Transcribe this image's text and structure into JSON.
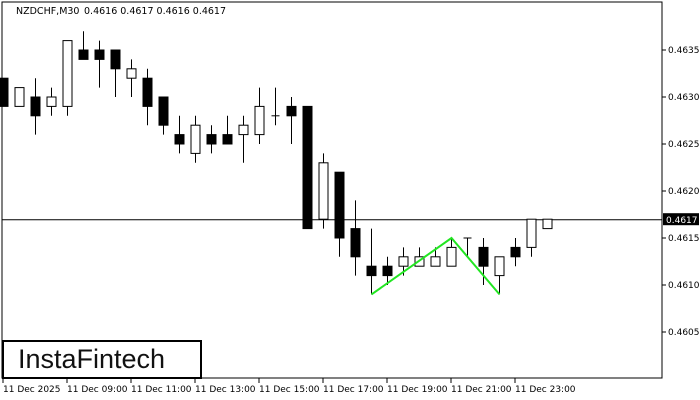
{
  "header": {
    "symbol": "NZDCHF,M30",
    "ohlc": "0.4616 0.4617 0.4616 0.4617"
  },
  "logo": {
    "text": "InstaFintech"
  },
  "colors": {
    "bull_body": "#ffffff",
    "bear_body": "#000000",
    "pattern_line": "#22e622",
    "current_price_bg": "#000000"
  },
  "chart_data": {
    "type": "candlestick",
    "timeframe": "M30",
    "ylim": [
      0.46,
      0.464
    ],
    "yticks": [
      "0.4635",
      "0.4630",
      "0.4625",
      "0.4620",
      "0.4615",
      "0.4610",
      "0.4605"
    ],
    "xticks": [
      "11 Dec 2025",
      "11 Dec 09:00",
      "11 Dec 11:00",
      "11 Dec 13:00",
      "11 Dec 15:00",
      "11 Dec 17:00",
      "11 Dec 19:00",
      "11 Dec 21:00",
      "11 Dec 23:00"
    ],
    "current_price": "0.4617",
    "candles": [
      {
        "o": 0.4632,
        "h": 0.4632,
        "l": 0.4629,
        "c": 0.4629
      },
      {
        "o": 0.4629,
        "h": 0.4631,
        "l": 0.4629,
        "c": 0.4631
      },
      {
        "o": 0.463,
        "h": 0.4632,
        "l": 0.4626,
        "c": 0.4628
      },
      {
        "o": 0.4629,
        "h": 0.4631,
        "l": 0.4628,
        "c": 0.463
      },
      {
        "o": 0.4629,
        "h": 0.4636,
        "l": 0.4628,
        "c": 0.4636
      },
      {
        "o": 0.4635,
        "h": 0.4637,
        "l": 0.4634,
        "c": 0.4634
      },
      {
        "o": 0.4635,
        "h": 0.4636,
        "l": 0.4631,
        "c": 0.4634
      },
      {
        "o": 0.4635,
        "h": 0.4635,
        "l": 0.463,
        "c": 0.4633
      },
      {
        "o": 0.4632,
        "h": 0.4634,
        "l": 0.463,
        "c": 0.4633
      },
      {
        "o": 0.4632,
        "h": 0.4633,
        "l": 0.4627,
        "c": 0.4629
      },
      {
        "o": 0.463,
        "h": 0.463,
        "l": 0.4626,
        "c": 0.4627
      },
      {
        "o": 0.4626,
        "h": 0.4628,
        "l": 0.4624,
        "c": 0.4625
      },
      {
        "o": 0.4624,
        "h": 0.4628,
        "l": 0.4623,
        "c": 0.4627
      },
      {
        "o": 0.4626,
        "h": 0.4627,
        "l": 0.4624,
        "c": 0.4625
      },
      {
        "o": 0.4626,
        "h": 0.4628,
        "l": 0.4625,
        "c": 0.4625
      },
      {
        "o": 0.4626,
        "h": 0.4628,
        "l": 0.4623,
        "c": 0.4627
      },
      {
        "o": 0.4626,
        "h": 0.4631,
        "l": 0.4625,
        "c": 0.4629
      },
      {
        "o": 0.4628,
        "h": 0.4631,
        "l": 0.4627,
        "c": 0.4628
      },
      {
        "o": 0.4629,
        "h": 0.463,
        "l": 0.4625,
        "c": 0.4628
      },
      {
        "o": 0.4629,
        "h": 0.4629,
        "l": 0.4616,
        "c": 0.4616
      },
      {
        "o": 0.4617,
        "h": 0.4624,
        "l": 0.4616,
        "c": 0.4623
      },
      {
        "o": 0.4622,
        "h": 0.4622,
        "l": 0.4613,
        "c": 0.4615
      },
      {
        "o": 0.4616,
        "h": 0.4619,
        "l": 0.4611,
        "c": 0.4613
      },
      {
        "o": 0.4612,
        "h": 0.4616,
        "l": 0.4609,
        "c": 0.4611
      },
      {
        "o": 0.4612,
        "h": 0.4613,
        "l": 0.461,
        "c": 0.4611
      },
      {
        "o": 0.4612,
        "h": 0.4614,
        "l": 0.4611,
        "c": 0.4613
      },
      {
        "o": 0.4612,
        "h": 0.4614,
        "l": 0.4612,
        "c": 0.4613
      },
      {
        "o": 0.4612,
        "h": 0.4614,
        "l": 0.4612,
        "c": 0.4613
      },
      {
        "o": 0.4612,
        "h": 0.4615,
        "l": 0.4612,
        "c": 0.4614
      },
      {
        "o": 0.4615,
        "h": 0.4615,
        "l": 0.4613,
        "c": 0.4615
      },
      {
        "o": 0.4614,
        "h": 0.4615,
        "l": 0.461,
        "c": 0.4612
      },
      {
        "o": 0.4611,
        "h": 0.4613,
        "l": 0.4609,
        "c": 0.4613
      },
      {
        "o": 0.4614,
        "h": 0.4615,
        "l": 0.4612,
        "c": 0.4613
      },
      {
        "o": 0.4614,
        "h": 0.4617,
        "l": 0.4613,
        "c": 0.4617
      },
      {
        "o": 0.4616,
        "h": 0.4617,
        "l": 0.4616,
        "c": 0.4617
      }
    ],
    "pattern": {
      "name": "double bottom",
      "points": [
        {
          "candle": 23,
          "price": 0.4609
        },
        {
          "candle": 28,
          "price": 0.4615
        },
        {
          "candle": 31,
          "price": 0.4609
        }
      ]
    }
  }
}
